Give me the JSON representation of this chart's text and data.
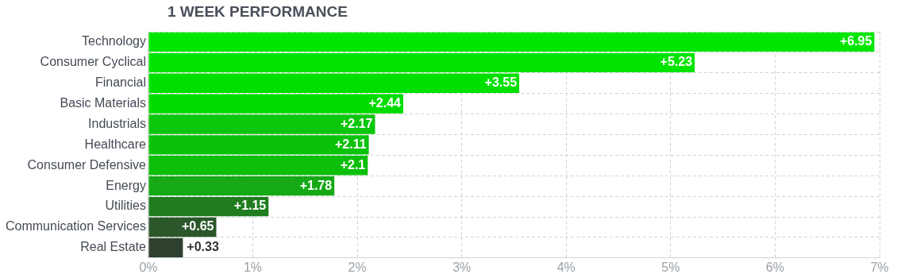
{
  "chart_data": {
    "type": "bar",
    "orientation": "horizontal",
    "title": "1 WEEK PERFORMANCE",
    "categories": [
      "Technology",
      "Consumer Cyclical",
      "Financial",
      "Basic Materials",
      "Industrials",
      "Healthcare",
      "Consumer Defensive",
      "Energy",
      "Utilities",
      "Communication Services",
      "Real Estate"
    ],
    "values": [
      6.95,
      5.23,
      3.55,
      2.44,
      2.17,
      2.11,
      2.1,
      1.78,
      1.15,
      0.65,
      0.33
    ],
    "value_labels": [
      "+6.95",
      "+5.23",
      "+3.55",
      "+2.44",
      "+2.17",
      "+2.11",
      "+2.1",
      "+1.78",
      "+1.15",
      "+0.65",
      "+0.33"
    ],
    "colors": [
      "#00e600",
      "#00e400",
      "#00e000",
      "#00dc00",
      "#0cc60c",
      "#0bc20b",
      "#0bbf0b",
      "#15a915",
      "#1f7d1f",
      "#2b582b",
      "#2f402f"
    ],
    "xlim": [
      0,
      7
    ],
    "xticks": [
      {
        "value": 0,
        "label": "0%"
      },
      {
        "value": 1,
        "label": "1%"
      },
      {
        "value": 2,
        "label": "2%"
      },
      {
        "value": 3,
        "label": "3%"
      },
      {
        "value": 4,
        "label": "4%"
      },
      {
        "value": 5,
        "label": "5%"
      },
      {
        "value": 6,
        "label": "6%"
      },
      {
        "value": 7,
        "label": "7%"
      }
    ],
    "grid": true,
    "legend": false
  }
}
